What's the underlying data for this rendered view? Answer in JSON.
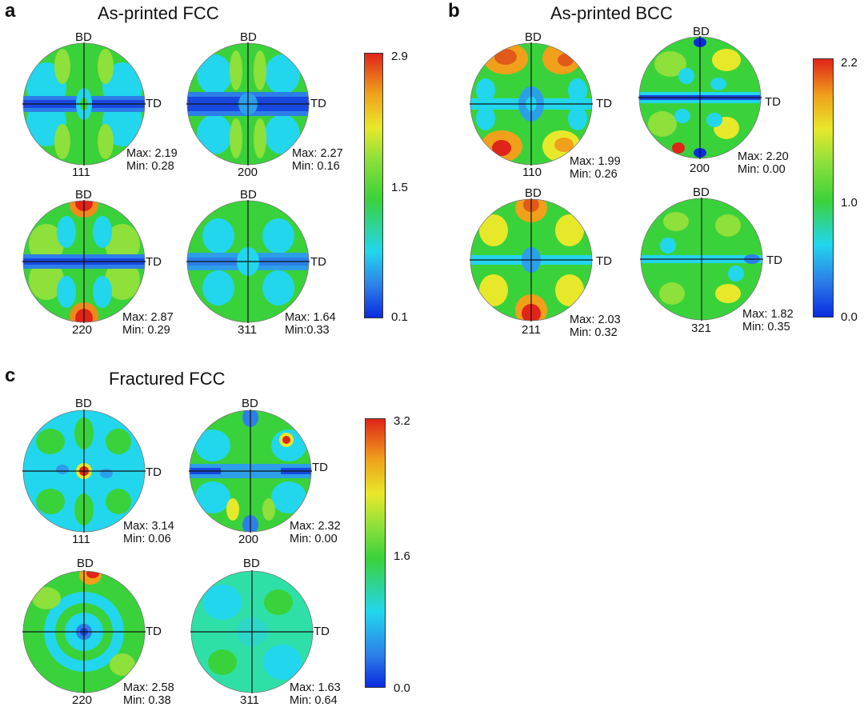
{
  "panels": {
    "a": {
      "label": "a",
      "title": "As-printed FCC",
      "colorbar": {
        "max": "2.9",
        "mid": "1.5",
        "min": "0.1"
      },
      "figures": [
        {
          "pole": "111",
          "max": "Max: 2.19",
          "min": "Min: 0.28",
          "bd": "BD",
          "td": "TD"
        },
        {
          "pole": "200",
          "max": "Max: 2.27",
          "min": "Min: 0.16",
          "bd": "BD",
          "td": "TD"
        },
        {
          "pole": "220",
          "max": "Max: 2.87",
          "min": "Min: 0.29",
          "bd": "BD",
          "td": "TD"
        },
        {
          "pole": "311",
          "max": "Max: 1.64",
          "min": "Min:0.33",
          "bd": "BD",
          "td": "TD"
        }
      ]
    },
    "b": {
      "label": "b",
      "title": "As-printed BCC",
      "colorbar": {
        "max": "2.2",
        "mid": "1.0",
        "min": "0.0"
      },
      "figures": [
        {
          "pole": "110",
          "max": "Max: 1.99",
          "min": "Min: 0.26",
          "bd": "BD",
          "td": "TD"
        },
        {
          "pole": "200",
          "max": "Max: 2.20",
          "min": "Min: 0.00",
          "bd": "BD",
          "td": "TD"
        },
        {
          "pole": "211",
          "max": "Max: 2.03",
          "min": "Min: 0.32",
          "bd": "BD",
          "td": "TD"
        },
        {
          "pole": "321",
          "max": "Max: 1.82",
          "min": "Min: 0.35",
          "bd": "BD",
          "td": "TD"
        }
      ]
    },
    "c": {
      "label": "c",
      "title": "Fractured FCC",
      "colorbar": {
        "max": "3.2",
        "mid": "1.6",
        "min": "0.0"
      },
      "figures": [
        {
          "pole": "111",
          "max": "Max: 3.14",
          "min": "Min: 0.06",
          "bd": "BD",
          "td": "TD"
        },
        {
          "pole": "200",
          "max": "Max: 2.32",
          "min": "Min: 0.00",
          "bd": "BD",
          "td": "TD"
        },
        {
          "pole": "220",
          "max": "Max: 2.58",
          "min": "Min: 0.38",
          "bd": "BD",
          "td": "TD"
        },
        {
          "pole": "311",
          "max": "Max: 1.63",
          "min": "Min: 0.64",
          "bd": "BD",
          "td": "TD"
        }
      ]
    }
  },
  "colors": {
    "low": "#0a2be0",
    "cyan": "#22d6ee",
    "green": "#3ad23a",
    "yellow": "#e8e82a",
    "high": "#e0241a"
  }
}
